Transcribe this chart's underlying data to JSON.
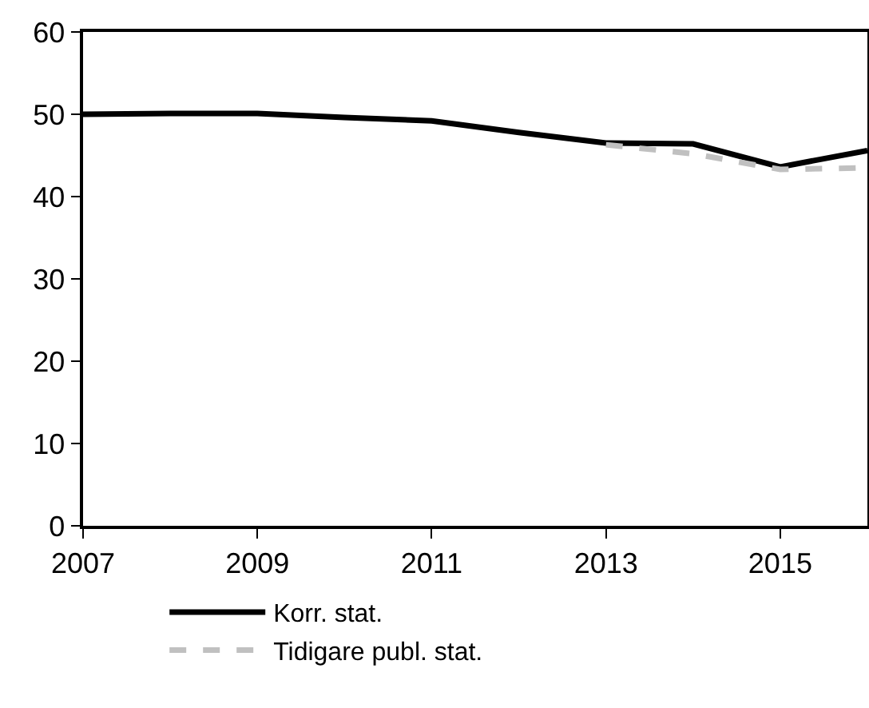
{
  "chart_data": {
    "type": "line",
    "x": [
      2007,
      2008,
      2009,
      2010,
      2011,
      2012,
      2013,
      2014,
      2015,
      2016
    ],
    "series": [
      {
        "name": "Korr. stat.",
        "color": "#000000",
        "line_style": "solid",
        "values": [
          50,
          50.1,
          50.1,
          49.6,
          49.2,
          47.8,
          46.5,
          46.4,
          43.6,
          45.6
        ]
      },
      {
        "name": "Tidigare publ. stat.",
        "color": "#c0c0c0",
        "line_style": "dashed",
        "values": [
          null,
          null,
          null,
          null,
          null,
          null,
          46.3,
          45.2,
          43.3,
          43.5
        ]
      }
    ],
    "xlim": [
      2007,
      2016
    ],
    "xticks": [
      2007,
      2009,
      2011,
      2013,
      2015
    ],
    "ylim": [
      0,
      60
    ],
    "yticks": [
      0,
      10,
      20,
      30,
      40,
      50,
      60
    ],
    "grid": false,
    "legend": "bottom",
    "marker": "none"
  }
}
